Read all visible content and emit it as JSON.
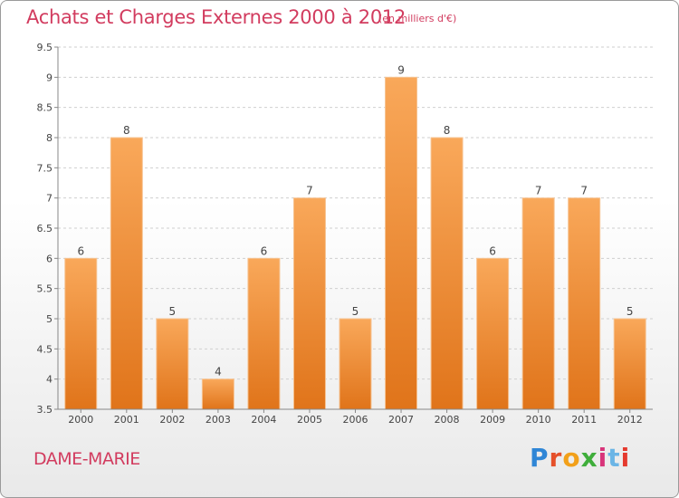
{
  "header": {
    "title": "Achats et Charges Externes 2000 à 2012",
    "unit": "(en milliers d'€)"
  },
  "footer": {
    "place": "DAME-MARIE",
    "brand": "Proxiti"
  },
  "brand_colors": [
    "#2f86d6",
    "#e5502a",
    "#f2a01a",
    "#3fae3b",
    "#d8347a",
    "#6bb5e6",
    "#e53a2e"
  ],
  "colors": {
    "title": "#d23c5f",
    "bar_top": "#f9a85a",
    "bar_bottom": "#e0741a"
  },
  "chart_data": {
    "type": "bar",
    "categories": [
      "2000",
      "2001",
      "2002",
      "2003",
      "2004",
      "2005",
      "2006",
      "2007",
      "2008",
      "2009",
      "2010",
      "2011",
      "2012"
    ],
    "values": [
      6,
      8,
      5,
      4,
      6,
      7,
      5,
      9,
      8,
      6,
      7,
      7,
      5
    ],
    "data_labels": [
      "6",
      "8",
      "5",
      "4",
      "6",
      "7",
      "5",
      "9",
      "8",
      "6",
      "7",
      "7",
      "5"
    ],
    "ylim": [
      3.5,
      9.5
    ],
    "yticks": [
      "3.5",
      "4",
      "4.5",
      "5",
      "5.5",
      "6",
      "6.5",
      "7",
      "7.5",
      "8",
      "8.5",
      "9",
      "9.5"
    ],
    "grid": true,
    "xlabel": "",
    "ylabel": ""
  }
}
